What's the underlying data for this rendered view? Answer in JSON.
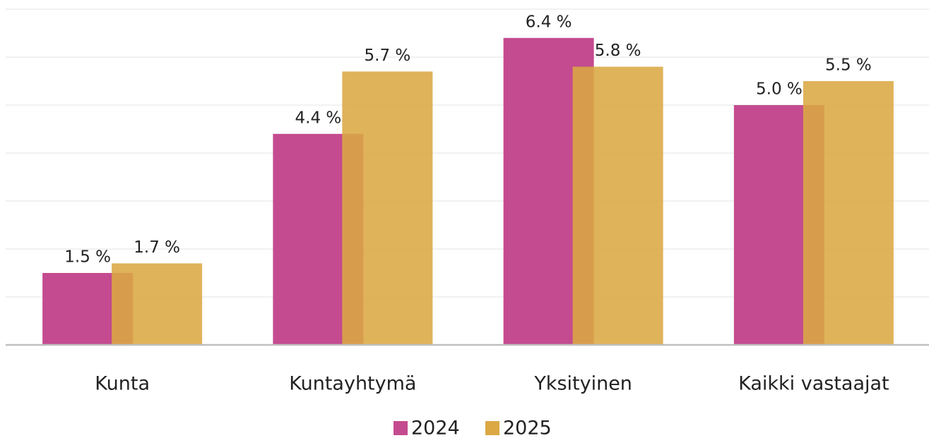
{
  "chart_data": {
    "type": "bar",
    "categories": [
      "Kunta",
      "Kuntayhtymä",
      "Yksityinen",
      "Kaikki vastaajat"
    ],
    "series": [
      {
        "name": "2024",
        "color": "#c44b8f",
        "values": [
          1.5,
          4.4,
          6.4,
          5.0
        ],
        "value_labels": [
          "1.5 %",
          "4.4 %",
          "6.4 %",
          "5.0 %"
        ]
      },
      {
        "name": "2025",
        "color": "#dba843",
        "values": [
          1.7,
          5.7,
          5.8,
          5.5
        ],
        "value_labels": [
          "1.7 %",
          "5.7 %",
          "5.8 %",
          "5.5 %"
        ]
      }
    ],
    "ylim": [
      0,
      7
    ],
    "yticks": [
      0,
      1,
      2,
      3,
      4,
      5,
      6,
      7
    ],
    "grid": true,
    "legend": "bottom"
  }
}
